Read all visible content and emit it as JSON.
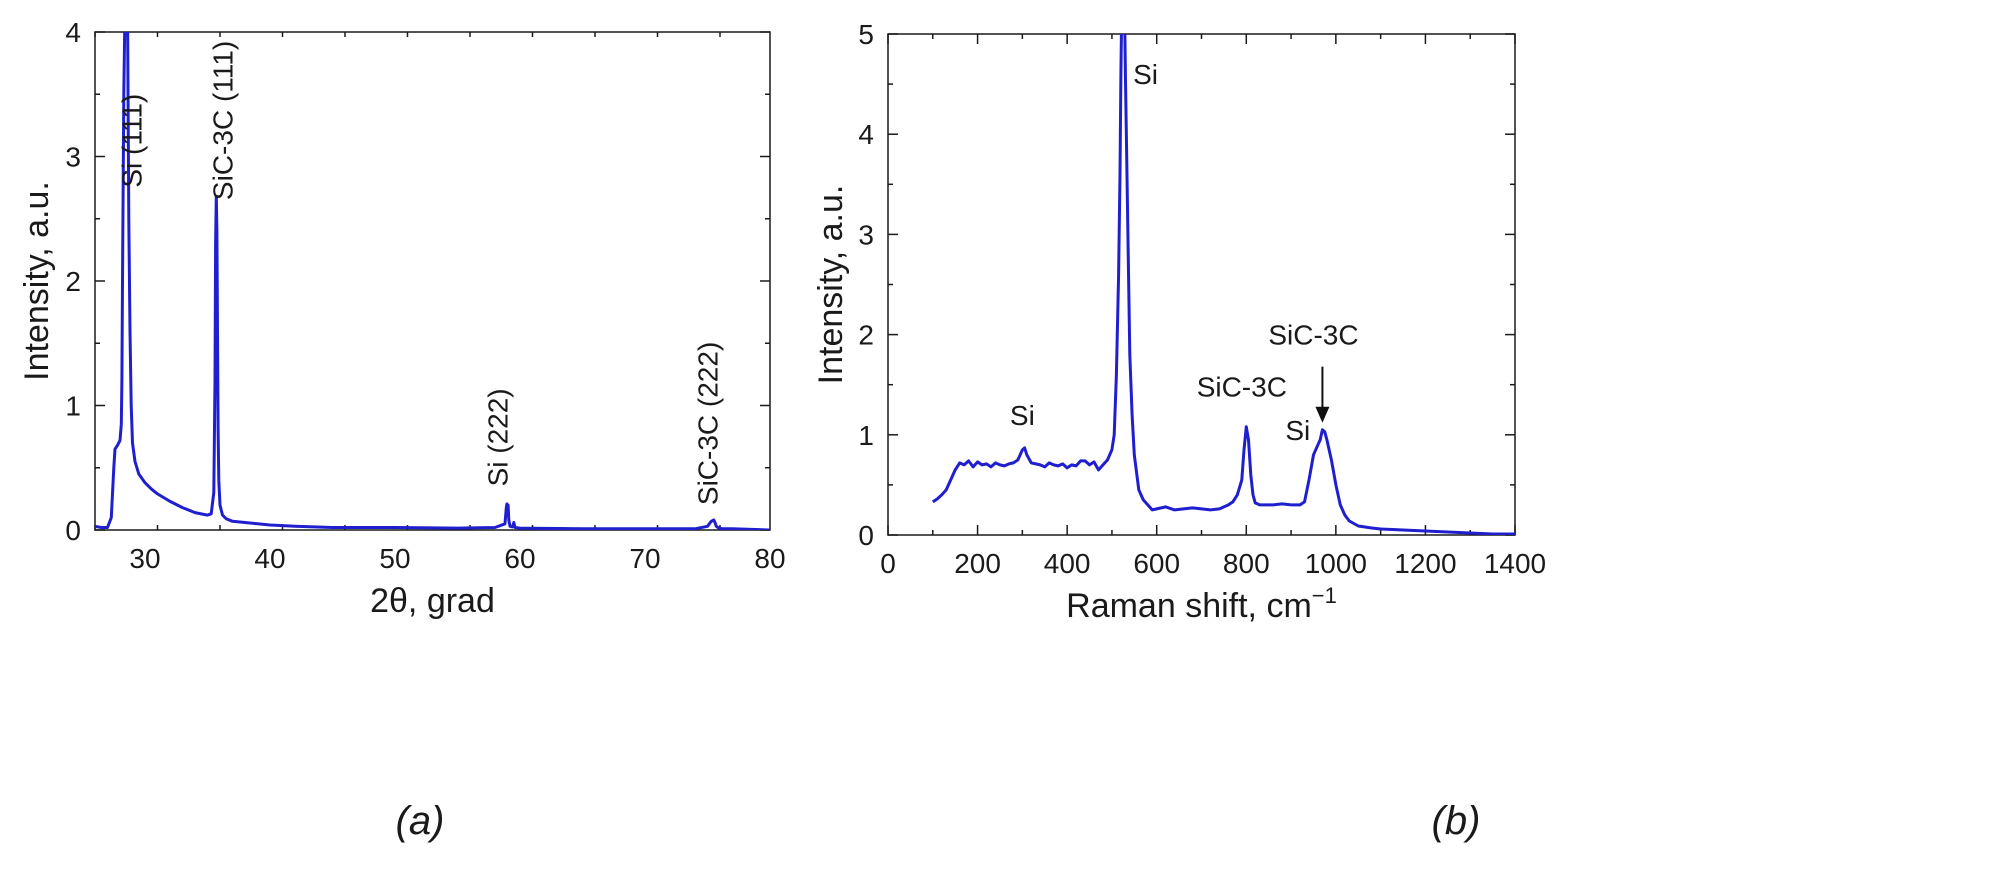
{
  "figure": {
    "panel_a": "(a)",
    "panel_b": "(b)"
  },
  "chart_data": [
    {
      "id": "a",
      "type": "line",
      "xlabel": "2θ, grad",
      "ylabel": "Intensity, a.u.",
      "xlim": [
        26,
        80
      ],
      "ylim": [
        0,
        4
      ],
      "xticks": [
        30,
        40,
        50,
        60,
        70,
        80
      ],
      "yticks": [
        0,
        1,
        2,
        3,
        4
      ],
      "grid": false,
      "line_color": "#1f1fd0",
      "series": [
        {
          "x": [
            26,
            26.5,
            27,
            27.3,
            27.5,
            27.6,
            27.8,
            28.0,
            28.1,
            28.15,
            28.2,
            28.3,
            28.4,
            28.45,
            28.5,
            28.55,
            28.6,
            28.7,
            28.8,
            28.9,
            29.0,
            29.2,
            29.5,
            30.0,
            30.5,
            31,
            32,
            33,
            34,
            35,
            35.3,
            35.5,
            35.6,
            35.65,
            35.7,
            35.75,
            35.8,
            35.85,
            35.9,
            36.0,
            36.2,
            36.5,
            37,
            38,
            39,
            40,
            42,
            45,
            50,
            55,
            58,
            58.8,
            58.9,
            58.95,
            59.0,
            59.05,
            59.1,
            59.2,
            59.4,
            59.5,
            59.6,
            60,
            65,
            70,
            74,
            75,
            75.3,
            75.5,
            75.6,
            75.7,
            75.9,
            76.2,
            77,
            80
          ],
          "y": [
            0.03,
            0.02,
            0.02,
            0.1,
            0.5,
            0.65,
            0.68,
            0.72,
            0.85,
            1.2,
            2.0,
            3.5,
            4.2,
            4.5,
            4.5,
            4.5,
            4.2,
            2.5,
            1.6,
            1.0,
            0.7,
            0.55,
            0.45,
            0.38,
            0.33,
            0.29,
            0.23,
            0.18,
            0.14,
            0.12,
            0.13,
            0.3,
            1.2,
            2.3,
            2.68,
            2.4,
            1.6,
            0.8,
            0.4,
            0.2,
            0.12,
            0.09,
            0.07,
            0.06,
            0.05,
            0.04,
            0.03,
            0.02,
            0.02,
            0.015,
            0.02,
            0.05,
            0.18,
            0.21,
            0.15,
            0.2,
            0.08,
            0.03,
            0.025,
            0.06,
            0.02,
            0.015,
            0.01,
            0.01,
            0.01,
            0.03,
            0.07,
            0.08,
            0.06,
            0.03,
            0.015,
            0.01,
            0.01,
            0.0
          ]
        }
      ],
      "annotations": [
        {
          "text": "Si (111)",
          "x": 29.7,
          "y": 2.75
        },
        {
          "text": "SiC-3C (111)",
          "x": 37.0,
          "y": 2.65
        },
        {
          "text": "Si (222)",
          "x": 59.0,
          "y": 0.35
        },
        {
          "text": "SiC-3C (222)",
          "x": 75.8,
          "y": 0.2
        }
      ]
    },
    {
      "id": "b",
      "type": "line",
      "xlabel": "Raman shift, cm",
      "xlabel_superscript": "−1",
      "ylabel": "Intensity, a.u.",
      "xlim": [
        0,
        1400
      ],
      "ylim": [
        0,
        5
      ],
      "xticks": [
        0,
        200,
        400,
        600,
        800,
        1000,
        1200,
        1400
      ],
      "yticks": [
        0,
        1,
        2,
        3,
        4,
        5
      ],
      "grid": false,
      "line_color": "#1f1fd0",
      "series": [
        {
          "x": [
            100,
            110,
            120,
            130,
            140,
            150,
            160,
            170,
            180,
            190,
            200,
            210,
            220,
            230,
            240,
            250,
            260,
            270,
            280,
            290,
            300,
            305,
            310,
            320,
            330,
            340,
            350,
            360,
            370,
            380,
            390,
            400,
            410,
            420,
            430,
            440,
            450,
            460,
            470,
            480,
            490,
            500,
            505,
            510,
            515,
            518,
            520,
            522,
            525,
            528,
            530,
            535,
            540,
            545,
            550,
            560,
            570,
            580,
            590,
            600,
            620,
            640,
            660,
            680,
            700,
            720,
            740,
            760,
            770,
            780,
            790,
            795,
            800,
            805,
            810,
            815,
            820,
            830,
            840,
            860,
            880,
            900,
            920,
            930,
            940,
            950,
            960,
            965,
            970,
            975,
            980,
            990,
            1000,
            1010,
            1020,
            1030,
            1050,
            1080,
            1100,
            1150,
            1200,
            1250,
            1300,
            1350,
            1400
          ],
          "y": [
            0.33,
            0.36,
            0.4,
            0.45,
            0.55,
            0.65,
            0.72,
            0.7,
            0.74,
            0.68,
            0.73,
            0.7,
            0.71,
            0.68,
            0.72,
            0.7,
            0.69,
            0.71,
            0.72,
            0.75,
            0.85,
            0.87,
            0.8,
            0.72,
            0.71,
            0.7,
            0.68,
            0.72,
            0.7,
            0.69,
            0.71,
            0.67,
            0.7,
            0.69,
            0.74,
            0.74,
            0.7,
            0.73,
            0.65,
            0.7,
            0.75,
            0.85,
            1.0,
            1.6,
            2.6,
            3.6,
            4.6,
            5.3,
            5.5,
            5.3,
            4.6,
            3.2,
            1.8,
            1.2,
            0.8,
            0.45,
            0.35,
            0.3,
            0.25,
            0.26,
            0.28,
            0.25,
            0.26,
            0.27,
            0.26,
            0.25,
            0.26,
            0.3,
            0.33,
            0.4,
            0.55,
            0.85,
            1.08,
            0.95,
            0.6,
            0.4,
            0.32,
            0.3,
            0.3,
            0.3,
            0.31,
            0.3,
            0.3,
            0.33,
            0.55,
            0.8,
            0.9,
            0.95,
            1.05,
            1.03,
            0.95,
            0.75,
            0.5,
            0.3,
            0.2,
            0.14,
            0.09,
            0.07,
            0.06,
            0.05,
            0.04,
            0.03,
            0.02,
            0.01,
            0.01
          ]
        }
      ],
      "annotations": [
        {
          "text": "Si",
          "x": 300,
          "y": 1.1
        },
        {
          "text": "Si",
          "x": 575,
          "y": 4.5
        },
        {
          "text": "SiC-3C",
          "x": 790,
          "y": 1.38
        },
        {
          "text": "Si",
          "x": 915,
          "y": 0.95
        },
        {
          "text": "SiC-3C",
          "x": 950,
          "y": 1.9
        }
      ],
      "arrow": {
        "x": 970,
        "y_from": 1.68,
        "y_to": 1.12
      }
    }
  ]
}
